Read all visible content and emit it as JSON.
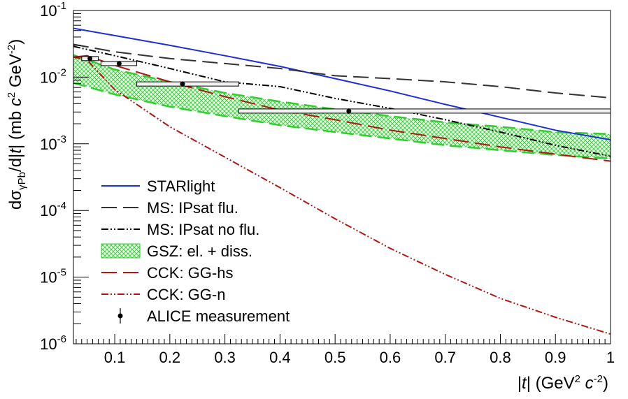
{
  "chart_data": {
    "type": "line",
    "title": "",
    "xlabel": "|t| (GeV² c⁻²)",
    "ylabel": "dσγPb/d|t| (mb c² GeV⁻²)",
    "xlim": [
      0.025,
      1.0
    ],
    "ylim": [
      1e-06,
      0.1
    ],
    "yscale": "log",
    "grid": false,
    "legend_position": "bottom-left",
    "x_ticks": [
      "0.1",
      "0.2",
      "0.3",
      "0.4",
      "0.5",
      "0.6",
      "0.7",
      "0.8",
      "0.9",
      "1"
    ],
    "y_ticks": [
      {
        "base": "10",
        "exp": "-6"
      },
      {
        "base": "10",
        "exp": "-5"
      },
      {
        "base": "10",
        "exp": "-4"
      },
      {
        "base": "10",
        "exp": "-3"
      },
      {
        "base": "10",
        "exp": "-2"
      },
      {
        "base": "10",
        "exp": "-1"
      }
    ],
    "colors": {
      "starlight": "#1f2fd6",
      "ms_flu": "#333333",
      "ms_noflu": "#000000",
      "gsz": "#33cc33",
      "cck_hs": "#b01616",
      "cck_n": "#b01616",
      "alice": "#000000"
    },
    "series": [
      {
        "name": "STARlight",
        "style": "solid",
        "x": [
          0.025,
          0.1,
          0.2,
          0.3,
          0.4,
          0.5,
          0.6,
          0.7,
          0.8,
          0.9,
          1.0
        ],
        "y": [
          0.054,
          0.042,
          0.03,
          0.021,
          0.0145,
          0.0095,
          0.0062,
          0.0039,
          0.0025,
          0.0016,
          0.00115
        ]
      },
      {
        "name": "MS: IPsat flu.",
        "style": "long-dash",
        "x": [
          0.025,
          0.1,
          0.2,
          0.3,
          0.4,
          0.5,
          0.6,
          0.7,
          0.8,
          0.9,
          1.0
        ],
        "y": [
          0.031,
          0.024,
          0.019,
          0.016,
          0.0135,
          0.0105,
          0.0095,
          0.0085,
          0.0072,
          0.0058,
          0.0049
        ]
      },
      {
        "name": "MS: IPsat no flu.",
        "style": "dash-dot-dot",
        "x": [
          0.025,
          0.1,
          0.2,
          0.3,
          0.4,
          0.5,
          0.6,
          0.7,
          0.8,
          0.9,
          1.0
        ],
        "y": [
          0.029,
          0.021,
          0.0135,
          0.0085,
          0.0072,
          0.0048,
          0.0034,
          0.0023,
          0.0015,
          0.00095,
          0.00065
        ]
      },
      {
        "name": "CCK: GG-hs",
        "style": "long-dash",
        "x": [
          0.025,
          0.05,
          0.1,
          0.2,
          0.3,
          0.4,
          0.5,
          0.6,
          0.7,
          0.8,
          0.9,
          1.0
        ],
        "y": [
          0.02,
          0.021,
          0.015,
          0.0085,
          0.0051,
          0.0032,
          0.0023,
          0.0016,
          0.0012,
          0.0009,
          0.0007,
          0.00055
        ]
      },
      {
        "name": "CCK: GG-n",
        "style": "dash-dot-dot",
        "x": [
          0.025,
          0.05,
          0.1,
          0.2,
          0.3,
          0.4,
          0.5,
          0.6,
          0.7,
          0.8,
          0.9,
          1.0
        ],
        "y": [
          0.02,
          0.018,
          0.0065,
          0.0018,
          0.00063,
          0.00022,
          7.5e-05,
          2.7e-05,
          1.1e-05,
          4.8e-06,
          2.5e-06,
          1.4e-06
        ]
      }
    ],
    "band": {
      "name": "GSZ: el. + diss.",
      "x": [
        0.025,
        0.1,
        0.2,
        0.3,
        0.4,
        0.5,
        0.6,
        0.7,
        0.8,
        0.9,
        1.0
      ],
      "upper": [
        0.0215,
        0.013,
        0.0085,
        0.0058,
        0.0043,
        0.0033,
        0.0026,
        0.0021,
        0.0018,
        0.0015,
        0.0014
      ],
      "lower": [
        0.0082,
        0.0055,
        0.0036,
        0.0026,
        0.0019,
        0.0015,
        0.0012,
        0.00095,
        0.0008,
        0.00068,
        0.0006
      ]
    },
    "points": {
      "name": "ALICE measurement",
      "x": [
        0.055,
        0.108,
        0.223,
        0.525
      ],
      "y": [
        0.019,
        0.016,
        0.0079,
        0.0031
      ],
      "yerr": [
        0.0018,
        0.0015,
        0.0007,
        0.0003
      ],
      "xlo": [
        0.04,
        0.075,
        0.14,
        0.325
      ],
      "xhi": [
        0.07,
        0.14,
        0.325,
        1.0
      ]
    }
  }
}
